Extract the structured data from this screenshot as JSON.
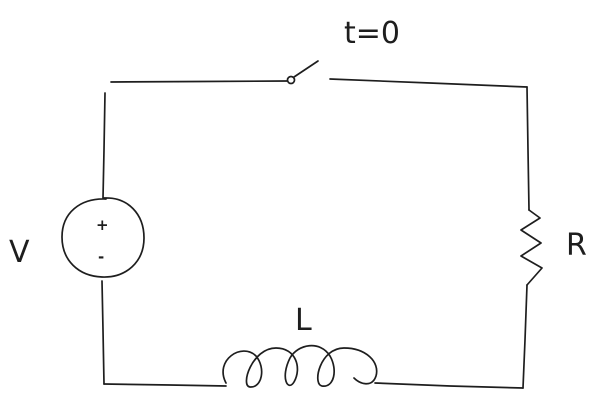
{
  "labels": {
    "switch_time": "t=0",
    "voltage_source": "V",
    "resistor": "R",
    "inductor": "L",
    "plus": "+",
    "minus": "-"
  },
  "colors": {
    "ink": "#1e1e1e",
    "background": "#ffffff"
  }
}
